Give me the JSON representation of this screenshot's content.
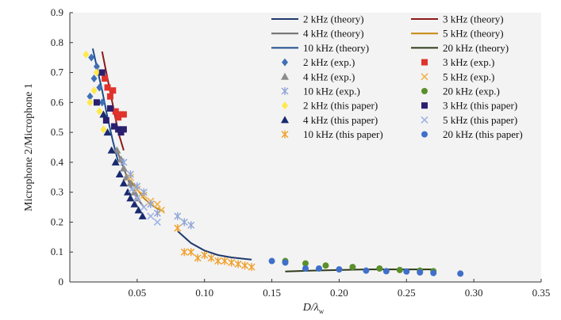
{
  "chart_data": {
    "type": "scatter",
    "xlabel_main": "D/λ",
    "xlabel_sub": "w",
    "ylabel": "Microphone 2/Microphone 1",
    "xlim": [
      0,
      0.35
    ],
    "ylim": [
      0,
      0.9
    ],
    "xticks": [
      "0.05",
      "0.10",
      "0.15",
      "0.20",
      "0.25",
      "0.30",
      "0.35"
    ],
    "xtick_values": [
      0.05,
      0.1,
      0.15,
      0.2,
      0.25,
      0.3,
      0.35
    ],
    "yticks": [
      "0",
      "0.1",
      "0.2",
      "0.3",
      "0.4",
      "0.5",
      "0.6",
      "0.7",
      "0.8",
      "0.9"
    ],
    "ytick_values": [
      0,
      0.1,
      0.2,
      0.3,
      0.4,
      0.5,
      0.6,
      0.7,
      0.8,
      0.9
    ],
    "legend_position": "top-right",
    "lines": [
      {
        "name": "2 kHz (theory)",
        "color": "#1f3a6e",
        "x": [
          0.08,
          0.09,
          0.1,
          0.11,
          0.12,
          0.13,
          0.135
        ],
        "y": [
          0.17,
          0.13,
          0.105,
          0.09,
          0.082,
          0.077,
          0.075
        ]
      },
      {
        "name": "3 kHz (theory)",
        "color": "#8b1a1a",
        "x": [
          0.024,
          0.028,
          0.032,
          0.036,
          0.04
        ],
        "y": [
          0.77,
          0.68,
          0.59,
          0.5,
          0.44
        ]
      },
      {
        "name": "4 kHz (theory)",
        "color": "#6b6b6b",
        "x": [
          0.035,
          0.04,
          0.045,
          0.05,
          0.055
        ],
        "y": [
          0.44,
          0.38,
          0.32,
          0.28,
          0.25
        ]
      },
      {
        "name": "5 kHz (theory)",
        "color": "#c8870e",
        "x": [
          0.045,
          0.05,
          0.055,
          0.06,
          0.065,
          0.07
        ],
        "y": [
          0.34,
          0.31,
          0.28,
          0.26,
          0.245,
          0.235
        ]
      },
      {
        "name": "10 kHz (theory)",
        "color": "#1f4e8c",
        "x": [
          0.017,
          0.02,
          0.024,
          0.028,
          0.032,
          0.036
        ],
        "y": [
          0.78,
          0.72,
          0.64,
          0.55,
          0.47,
          0.4
        ]
      },
      {
        "name": "20 kHz (theory)",
        "color": "#2e3b1a",
        "x": [
          0.16,
          0.18,
          0.2,
          0.22,
          0.24,
          0.26,
          0.27
        ],
        "y": [
          0.035,
          0.038,
          0.04,
          0.042,
          0.042,
          0.042,
          0.042
        ]
      }
    ],
    "scatter": [
      {
        "name": "2 kHz (exp.)",
        "marker": "diamond",
        "color": "#3f6fb5",
        "x": [
          0.015,
          0.018,
          0.02,
          0.022,
          0.016,
          0.024
        ],
        "y": [
          0.62,
          0.68,
          0.72,
          0.65,
          0.75,
          0.6
        ]
      },
      {
        "name": "3 kHz (exp.)",
        "marker": "square",
        "color": "#e0332b",
        "x": [
          0.028,
          0.03,
          0.032,
          0.034,
          0.036,
          0.038,
          0.04,
          0.026
        ],
        "y": [
          0.65,
          0.62,
          0.64,
          0.57,
          0.55,
          0.56,
          0.56,
          0.68
        ]
      },
      {
        "name": "4 kHz (exp.)",
        "marker": "triangle",
        "color": "#8c8c8c",
        "x": [
          0.035,
          0.038,
          0.04,
          0.042,
          0.045,
          0.048,
          0.05
        ],
        "y": [
          0.44,
          0.41,
          0.38,
          0.35,
          0.33,
          0.3,
          0.28
        ]
      },
      {
        "name": "5 kHz (exp.)",
        "marker": "x",
        "color": "#f0b24a",
        "x": [
          0.045,
          0.05,
          0.055,
          0.06,
          0.065,
          0.068
        ],
        "y": [
          0.35,
          0.31,
          0.29,
          0.27,
          0.26,
          0.24
        ]
      },
      {
        "name": "10 kHz (exp.)",
        "marker": "asterisk",
        "color": "#8fa5d6",
        "x": [
          0.04,
          0.045,
          0.05,
          0.055,
          0.06,
          0.065,
          0.08,
          0.085,
          0.09
        ],
        "y": [
          0.4,
          0.36,
          0.32,
          0.3,
          0.26,
          0.23,
          0.22,
          0.2,
          0.19
        ]
      },
      {
        "name": "20 kHz (exp.)",
        "marker": "circle",
        "color": "#5a8f2a",
        "x": [
          0.16,
          0.175,
          0.19,
          0.21,
          0.23,
          0.245,
          0.26,
          0.27
        ],
        "y": [
          0.07,
          0.062,
          0.055,
          0.05,
          0.045,
          0.04,
          0.038,
          0.036
        ]
      },
      {
        "name": "2 kHz (this paper)",
        "marker": "diamond",
        "color": "#ffe84a",
        "x": [
          0.012,
          0.015,
          0.018,
          0.02,
          0.022,
          0.025
        ],
        "y": [
          0.76,
          0.6,
          0.64,
          0.7,
          0.57,
          0.51
        ]
      },
      {
        "name": "3 kHz (this paper)",
        "marker": "square",
        "color": "#2a1f6e",
        "x": [
          0.02,
          0.024,
          0.027,
          0.03,
          0.033,
          0.036,
          0.038,
          0.04
        ],
        "y": [
          0.6,
          0.7,
          0.54,
          0.58,
          0.52,
          0.51,
          0.5,
          0.51
        ]
      },
      {
        "name": "4 kHz (this paper)",
        "marker": "triangle",
        "color": "#1a2a6e",
        "x": [
          0.025,
          0.028,
          0.031,
          0.034,
          0.037,
          0.04,
          0.043,
          0.045,
          0.048,
          0.051,
          0.054
        ],
        "y": [
          0.56,
          0.5,
          0.44,
          0.4,
          0.36,
          0.33,
          0.3,
          0.28,
          0.26,
          0.24,
          0.22
        ]
      },
      {
        "name": "5 kHz (this paper)",
        "marker": "x",
        "color": "#9fb3e6",
        "x": [
          0.046,
          0.05,
          0.055,
          0.06,
          0.065
        ],
        "y": [
          0.31,
          0.28,
          0.25,
          0.22,
          0.2
        ]
      },
      {
        "name": "10 kHz (this paper)",
        "marker": "asterisk",
        "color": "#f0a02a",
        "x": [
          0.08,
          0.085,
          0.09,
          0.095,
          0.1,
          0.105,
          0.11,
          0.115,
          0.12,
          0.125,
          0.13,
          0.135
        ],
        "y": [
          0.18,
          0.1,
          0.1,
          0.08,
          0.09,
          0.08,
          0.07,
          0.07,
          0.065,
          0.06,
          0.055,
          0.05
        ]
      },
      {
        "name": "20 kHz (this paper)",
        "marker": "circle",
        "color": "#3f6fca",
        "x": [
          0.15,
          0.16,
          0.175,
          0.185,
          0.2,
          0.22,
          0.235,
          0.25,
          0.26,
          0.27,
          0.29
        ],
        "y": [
          0.07,
          0.065,
          0.045,
          0.045,
          0.042,
          0.038,
          0.036,
          0.035,
          0.032,
          0.03,
          0.028
        ]
      }
    ]
  }
}
